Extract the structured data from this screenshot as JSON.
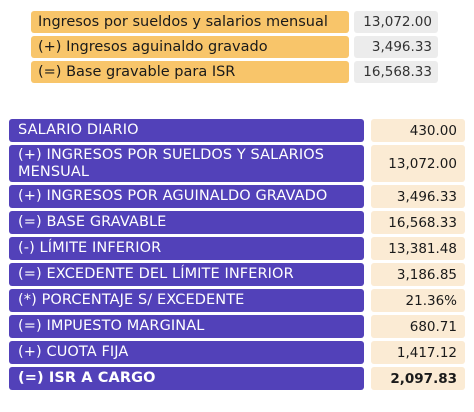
{
  "top_rows": [
    {
      "label": "Ingresos por sueldos y salarios mensual",
      "value": "13,072.00"
    },
    {
      "label": "(+) Ingresos aguinaldo gravado",
      "value": "3,496.33"
    },
    {
      "label": "(=) Base gravable para ISR",
      "value": "16,568.33"
    }
  ],
  "main_rows": [
    {
      "label": "SALARIO DIARIO",
      "value": "430.00"
    },
    {
      "label": "(+) INGRESOS POR SUELDOS Y SALARIOS MENSUAL",
      "value": "13,072.00"
    },
    {
      "label": "(+) INGRESOS POR AGUINALDO GRAVADO",
      "value": "3,496.33"
    },
    {
      "label": "(=) BASE GRAVABLE",
      "value": "16,568.33"
    },
    {
      "label": "(-) LÍMITE INFERIOR",
      "value": "13,381.48"
    },
    {
      "label": "(=) EXCEDENTE DEL LÍMITE INFERIOR",
      "value": "3,186.85"
    },
    {
      "label": "(*) PORCENTAJE S/ EXCEDENTE",
      "value": "21.36%"
    },
    {
      "label": "(=) IMPUESTO MARGINAL",
      "value": "680.71"
    },
    {
      "label": "(+) CUOTA FIJA",
      "value": "1,417.12"
    },
    {
      "label": "(=) ISR A CARGO",
      "value": "2,097.83"
    }
  ],
  "colors": {
    "top_label_bg": "#f8c56a",
    "top_value_bg": "#ececec",
    "main_label_bg": "#5241b9",
    "main_value_bg": "#fbebd4"
  }
}
